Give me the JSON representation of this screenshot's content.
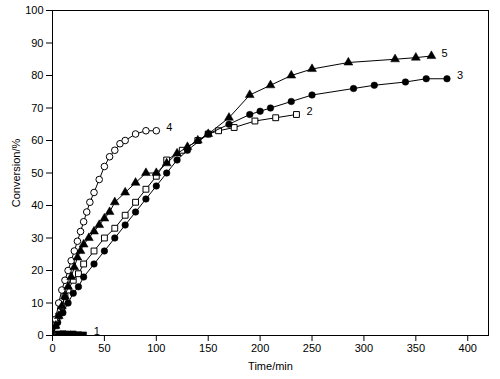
{
  "chart_data": {
    "type": "line",
    "x_label": "Time/min",
    "y_label": "Conversion/%",
    "xlim": [
      0,
      420
    ],
    "xticks": [
      0,
      50,
      100,
      150,
      200,
      250,
      300,
      350,
      400
    ],
    "ylim": [
      0,
      100
    ],
    "yticks": [
      0,
      10,
      20,
      30,
      40,
      50,
      60,
      70,
      80,
      90,
      100
    ],
    "grid": false,
    "series": [
      {
        "name": "1",
        "color": "#000000",
        "marker": "filled-square",
        "line_style": "solid",
        "x": [
          0,
          5,
          10,
          15,
          20,
          25,
          30
        ],
        "values": [
          0,
          0.5,
          0.6,
          0.5,
          0.5,
          0.3,
          0.2
        ]
      },
      {
        "name": "2",
        "color": "#000000",
        "marker": "open-square",
        "line_style": "solid",
        "x": [
          0,
          3,
          6,
          9,
          12,
          15,
          20,
          25,
          30,
          40,
          50,
          60,
          70,
          80,
          90,
          100,
          110,
          125,
          140,
          150,
          160,
          175,
          195,
          215,
          235
        ],
        "values": [
          0,
          3,
          6,
          9,
          12,
          14,
          17,
          19,
          22,
          26,
          30,
          33,
          37,
          41,
          45,
          49,
          54,
          57,
          60,
          62,
          63,
          64,
          66,
          67,
          68
        ]
      },
      {
        "name": "3",
        "color": "#000000",
        "marker": "filled-circle",
        "line_style": "solid",
        "x": [
          0,
          5,
          10,
          15,
          20,
          25,
          30,
          40,
          50,
          60,
          70,
          80,
          90,
          100,
          110,
          120,
          130,
          150,
          170,
          190,
          200,
          210,
          230,
          250,
          290,
          310,
          340,
          360,
          380
        ],
        "values": [
          0,
          4,
          7,
          10,
          13,
          15,
          18,
          22,
          26,
          30,
          34,
          38,
          42,
          46,
          50,
          54,
          57,
          62,
          65,
          68,
          69,
          70,
          72,
          74,
          76,
          77,
          78,
          79,
          79
        ]
      },
      {
        "name": "4",
        "color": "#000000",
        "marker": "open-circle",
        "line_style": "solid",
        "x": [
          0,
          3,
          6,
          9,
          12,
          15,
          18,
          21,
          24,
          27,
          30,
          33,
          36,
          40,
          45,
          50,
          55,
          60,
          65,
          70,
          80,
          90,
          100
        ],
        "values": [
          0,
          5,
          10,
          14,
          17,
          20,
          23,
          26,
          29,
          32,
          35,
          38,
          41,
          44,
          48,
          52,
          55,
          57,
          59,
          60,
          62,
          63,
          63
        ]
      },
      {
        "name": "5",
        "color": "#000000",
        "marker": "filled-triangle",
        "line_style": "solid",
        "x": [
          0,
          3,
          6,
          9,
          12,
          15,
          18,
          21,
          24,
          27,
          30,
          35,
          40,
          45,
          50,
          55,
          60,
          70,
          80,
          90,
          100,
          110,
          120,
          130,
          140,
          150,
          170,
          190,
          210,
          230,
          250,
          285,
          330,
          350,
          365
        ],
        "values": [
          0,
          3,
          6,
          9,
          12,
          15,
          18,
          21,
          24,
          26,
          28,
          30,
          32,
          34,
          36,
          38,
          41,
          44,
          47,
          50,
          50,
          53,
          56,
          58,
          60,
          62,
          67,
          74,
          77,
          80,
          82,
          84,
          85,
          85.5,
          86
        ]
      }
    ]
  }
}
